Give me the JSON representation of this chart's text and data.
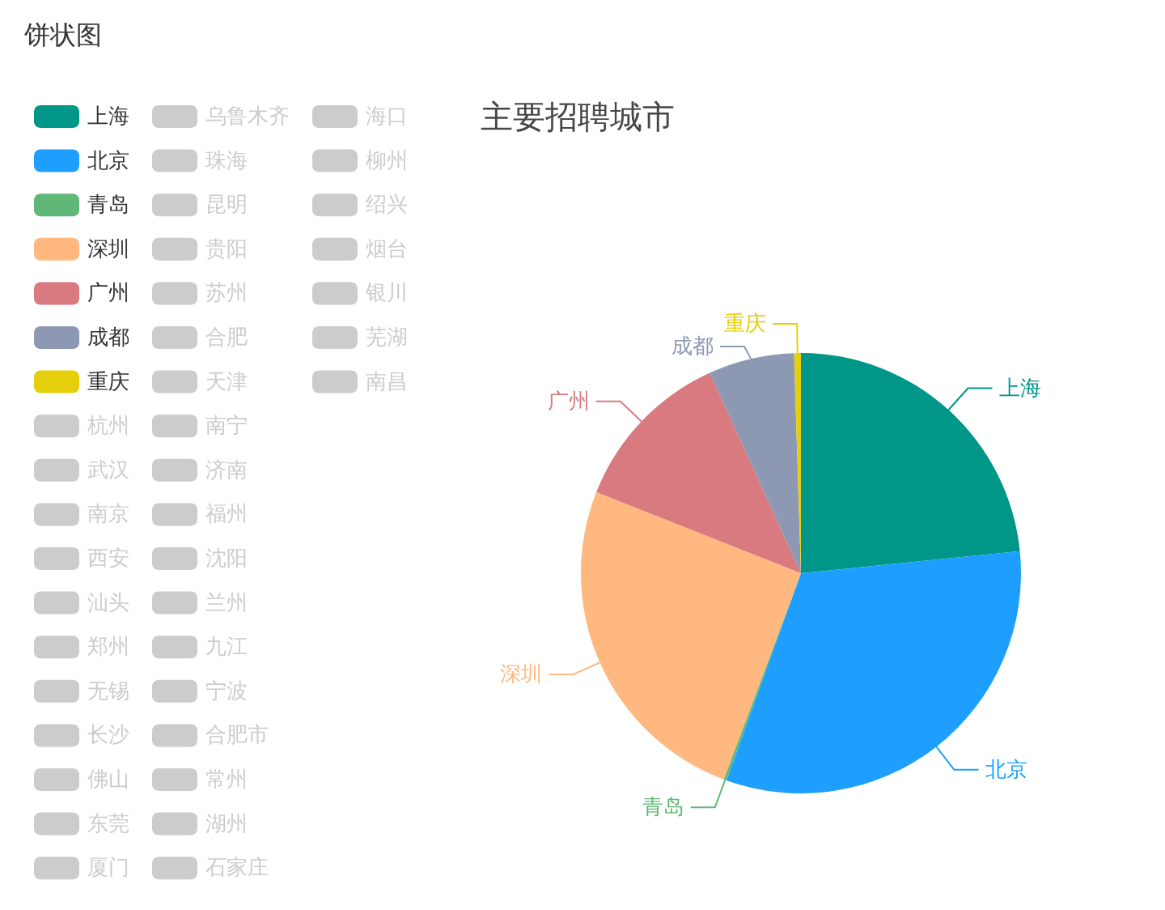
{
  "chart_data": {
    "type": "pie",
    "title": "主要招聘城市",
    "annotations": [
      "饼状图"
    ],
    "categories": [
      "上海",
      "北京",
      "青岛",
      "深圳",
      "广州",
      "成都",
      "重庆",
      "杭州",
      "武汉",
      "南京",
      "西安",
      "汕头",
      "郑州",
      "无锡",
      "长沙",
      "佛山",
      "东莞",
      "厦门",
      "乌鲁木齐",
      "珠海",
      "昆明",
      "贵阳",
      "苏州",
      "合肥",
      "天津",
      "南宁",
      "济南",
      "福州",
      "沈阳",
      "兰州",
      "九江",
      "宁波",
      "合肥市",
      "常州",
      "湖州",
      "石家庄",
      "海口",
      "柳州",
      "绍兴",
      "烟台",
      "银川",
      "芜湖",
      "南昌"
    ],
    "values": [
      23.4,
      32.1,
      0.2,
      25.3,
      12.2,
      6.3,
      0.5,
      null,
      null,
      null,
      null,
      null,
      null,
      null,
      null,
      null,
      null,
      null,
      null,
      null,
      null,
      null,
      null,
      null,
      null,
      null,
      null,
      null,
      null,
      null,
      null,
      null,
      null,
      null,
      null,
      null,
      null,
      null,
      null,
      null,
      null,
      null,
      null
    ],
    "colors": [
      "#009688",
      "#1e9fff",
      "#5fb878",
      "#ffb980",
      "#d87a80",
      "#8d98b3",
      "#e5cf0d",
      "#cccccc",
      "#cccccc",
      "#cccccc",
      "#cccccc",
      "#cccccc",
      "#cccccc",
      "#cccccc",
      "#cccccc",
      "#cccccc",
      "#cccccc",
      "#cccccc",
      "#cccccc",
      "#cccccc",
      "#cccccc",
      "#cccccc",
      "#cccccc",
      "#cccccc",
      "#cccccc",
      "#cccccc",
      "#cccccc",
      "#cccccc",
      "#cccccc",
      "#cccccc",
      "#cccccc",
      "#cccccc",
      "#cccccc",
      "#cccccc",
      "#cccccc",
      "#cccccc",
      "#cccccc",
      "#cccccc",
      "#cccccc",
      "#cccccc",
      "#cccccc",
      "#cccccc",
      "#cccccc"
    ],
    "legend": "left"
  }
}
